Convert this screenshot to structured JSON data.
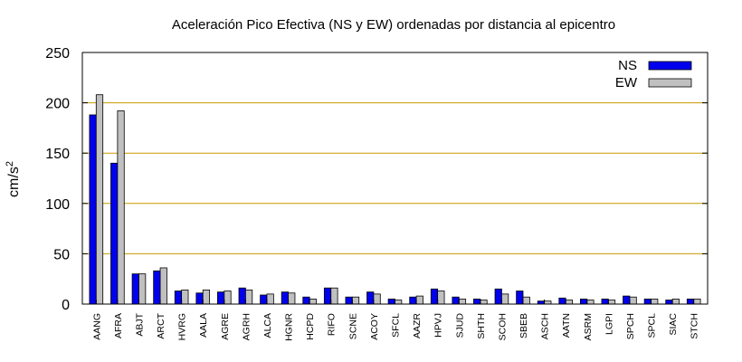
{
  "chart_data": {
    "type": "bar",
    "title": "Aceleración Pico Efectiva (NS y EW) ordenadas por distancia al epicentro",
    "ylabel": "cm/s",
    "ylabel_sup": "2",
    "xlabel": "",
    "ylim": [
      0,
      250
    ],
    "yticks": [
      0,
      50,
      100,
      150,
      200,
      250
    ],
    "grid": "horizontal",
    "legend_position": "top-right",
    "categories": [
      "AANG",
      "AFRA",
      "ABJT",
      "ARCT",
      "HVRG",
      "AALA",
      "AGRE",
      "AGRH",
      "ALCA",
      "HGNR",
      "HCPD",
      "RIFO",
      "SCNE",
      "ACOY",
      "SFCL",
      "AAZR",
      "HPVJ",
      "SJUD",
      "SHTH",
      "SCOH",
      "SBEB",
      "ASCH",
      "AATN",
      "ASRM",
      "LGPI",
      "SPCH",
      "SPCL",
      "SIAC",
      "STCH"
    ],
    "series": [
      {
        "name": "NS",
        "color": "#0000ee",
        "values": [
          188,
          140,
          30,
          33,
          13,
          11,
          12,
          16,
          9,
          12,
          7,
          16,
          7,
          12,
          5,
          7,
          15,
          7,
          5,
          15,
          13,
          3,
          6,
          5,
          5,
          8,
          5,
          4,
          5
        ]
      },
      {
        "name": "EW",
        "color": "#c0c0c0",
        "values": [
          208,
          192,
          30,
          36,
          14,
          14,
          13,
          14,
          10,
          11,
          5,
          16,
          7,
          10,
          4,
          8,
          13,
          5,
          4,
          10,
          7,
          3,
          4,
          4,
          4,
          7,
          5,
          5,
          5
        ]
      }
    ]
  }
}
